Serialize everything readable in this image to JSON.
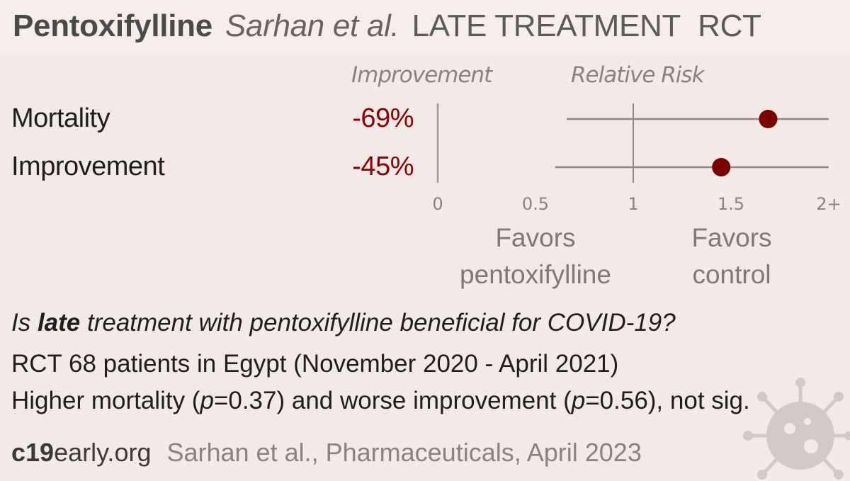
{
  "header": {
    "drug": "Pentoxifylline",
    "authors": "Sarhan et al.",
    "stage": "LATE TREATMENT",
    "design": "RCT"
  },
  "columns": {
    "improvement": "Improvement",
    "relative_risk": "Relative Risk"
  },
  "outcomes": [
    {
      "label": "Mortality",
      "improvement": "-69%"
    },
    {
      "label": "Improvement",
      "improvement": "-45%"
    }
  ],
  "favors": {
    "left_line1": "Favors",
    "left_line2": "pentoxifylline",
    "right_line1": "Favors",
    "right_line2": "control"
  },
  "question": {
    "prefix": "Is ",
    "bold": "late",
    "suffix": " treatment with pentoxifylline beneficial for COVID-19?"
  },
  "study_info": "RCT 68 patients in Egypt (November 2020 - April 2021)",
  "result": {
    "part1": "Higher mortality (",
    "p1_var": "p",
    "p1_rest": "=0.37) and worse improvement (",
    "p2_var": "p",
    "p2_rest": "=0.56), not sig."
  },
  "footer": {
    "site_bold": "c19",
    "site_rest": "early.org",
    "citation": "Sarhan et al., Pharmaceuticals, April 2023"
  },
  "colors": {
    "point": "#7a0000",
    "value_text": "#8b0000",
    "line": "#8f8787"
  },
  "chart_data": {
    "type": "scatter",
    "title": "",
    "xlabel": "Relative Risk",
    "ylabel": "",
    "x_ticks": [
      "0",
      "0.5",
      "1",
      "1.5",
      "2+"
    ],
    "xlim": [
      0,
      2
    ],
    "reference_line": 1,
    "series": [
      {
        "name": "Mortality",
        "rr": 1.69,
        "ci": [
          0.66,
          2.0
        ]
      },
      {
        "name": "Improvement",
        "rr": 1.45,
        "ci": [
          0.6,
          2.0
        ]
      }
    ]
  }
}
